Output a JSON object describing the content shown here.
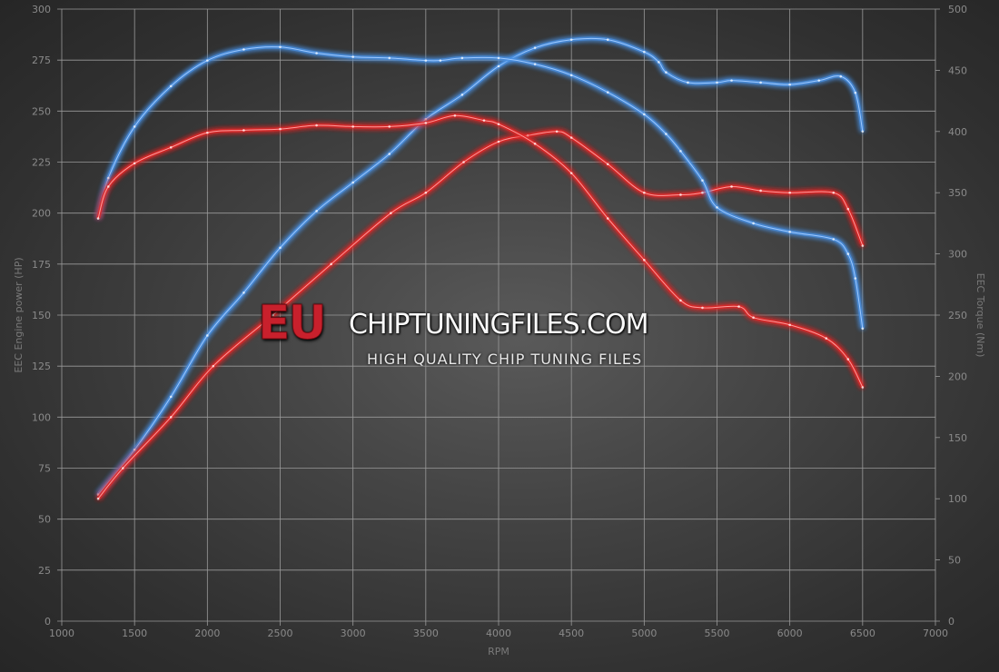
{
  "chart_data": {
    "type": "line",
    "xlabel": "RPM",
    "ylabel_left": "EEC Engine power (HP)",
    "ylabel_right": "EEC Torque (Nm)",
    "xlim": [
      1000,
      7000
    ],
    "ylim_left": [
      0,
      300
    ],
    "ylim_right": [
      0,
      500
    ],
    "x_ticks": [
      1000,
      1500,
      2000,
      2500,
      3000,
      3500,
      4000,
      4500,
      5000,
      5500,
      6000,
      6500,
      7000
    ],
    "y_ticks_left": [
      0,
      25,
      50,
      75,
      100,
      125,
      150,
      175,
      200,
      225,
      250,
      275,
      300
    ],
    "y_ticks_right": [
      0,
      50,
      100,
      150,
      200,
      250,
      300,
      350,
      400,
      450,
      500
    ],
    "grid": true,
    "series": [
      {
        "axis": "left",
        "color": "#4a90e2",
        "points": [
          [
            1250,
            62
          ],
          [
            1500,
            84
          ],
          [
            1750,
            110
          ],
          [
            2000,
            140
          ],
          [
            2250,
            161
          ],
          [
            2500,
            183
          ],
          [
            2750,
            201
          ],
          [
            3000,
            215
          ],
          [
            3250,
            229
          ],
          [
            3500,
            246
          ],
          [
            3750,
            258
          ],
          [
            4000,
            272
          ],
          [
            4250,
            281
          ],
          [
            4500,
            285
          ],
          [
            4750,
            285
          ],
          [
            5000,
            279
          ],
          [
            5100,
            274
          ],
          [
            5150,
            269
          ],
          [
            5300,
            264
          ],
          [
            5500,
            264
          ],
          [
            5600,
            265
          ],
          [
            5800,
            264
          ],
          [
            6000,
            263
          ],
          [
            6200,
            265
          ],
          [
            6350,
            267
          ],
          [
            6450,
            259
          ],
          [
            6500,
            240
          ]
        ]
      },
      {
        "axis": "left",
        "color": "#e02828",
        "points": [
          [
            1250,
            60
          ],
          [
            1420,
            75
          ],
          [
            1750,
            100
          ],
          [
            2040,
            125
          ],
          [
            2450,
            150
          ],
          [
            2850,
            175
          ],
          [
            3260,
            200
          ],
          [
            3500,
            210
          ],
          [
            3760,
            225
          ],
          [
            4000,
            235
          ],
          [
            4200,
            238
          ],
          [
            4400,
            240
          ],
          [
            4500,
            237
          ],
          [
            4750,
            224
          ],
          [
            5000,
            210
          ],
          [
            5250,
            209
          ],
          [
            5400,
            210
          ],
          [
            5600,
            213
          ],
          [
            5800,
            211
          ],
          [
            6000,
            210
          ],
          [
            6300,
            210
          ],
          [
            6400,
            202
          ],
          [
            6500,
            184
          ]
        ]
      },
      {
        "axis": "right",
        "color": "#4a90e2",
        "points": [
          [
            1250,
            329
          ],
          [
            1320,
            362
          ],
          [
            1500,
            404
          ],
          [
            1750,
            437
          ],
          [
            2000,
            458
          ],
          [
            2250,
            467
          ],
          [
            2500,
            469
          ],
          [
            2750,
            464
          ],
          [
            3000,
            461
          ],
          [
            3250,
            460
          ],
          [
            3500,
            458
          ],
          [
            3600,
            458
          ],
          [
            3750,
            460
          ],
          [
            4000,
            460
          ],
          [
            4250,
            455
          ],
          [
            4500,
            446
          ],
          [
            4750,
            432
          ],
          [
            5000,
            414
          ],
          [
            5150,
            398
          ],
          [
            5250,
            384
          ],
          [
            5400,
            360
          ],
          [
            5500,
            338
          ],
          [
            5750,
            325
          ],
          [
            6000,
            318
          ],
          [
            6300,
            312
          ],
          [
            6400,
            300
          ],
          [
            6450,
            280
          ],
          [
            6500,
            239
          ]
        ]
      },
      {
        "axis": "right",
        "color": "#e02828",
        "points": [
          [
            1250,
            329
          ],
          [
            1320,
            355
          ],
          [
            1500,
            374
          ],
          [
            1750,
            387
          ],
          [
            2000,
            399
          ],
          [
            2250,
            401
          ],
          [
            2500,
            402
          ],
          [
            2750,
            405
          ],
          [
            3000,
            404
          ],
          [
            3250,
            404
          ],
          [
            3500,
            407
          ],
          [
            3700,
            413
          ],
          [
            3900,
            409
          ],
          [
            4000,
            406
          ],
          [
            4250,
            390
          ],
          [
            4500,
            366
          ],
          [
            4750,
            329
          ],
          [
            5000,
            295
          ],
          [
            5250,
            262
          ],
          [
            5400,
            256
          ],
          [
            5650,
            257
          ],
          [
            5750,
            248
          ],
          [
            6000,
            242
          ],
          [
            6250,
            231
          ],
          [
            6400,
            214
          ],
          [
            6500,
            191
          ]
        ]
      }
    ]
  },
  "watermark": {
    "brand_prefix": "EU",
    "brand_main": "CHIPTUNINGFILES.COM",
    "tagline": "HIGH QUALITY CHIP TUNING FILES"
  }
}
